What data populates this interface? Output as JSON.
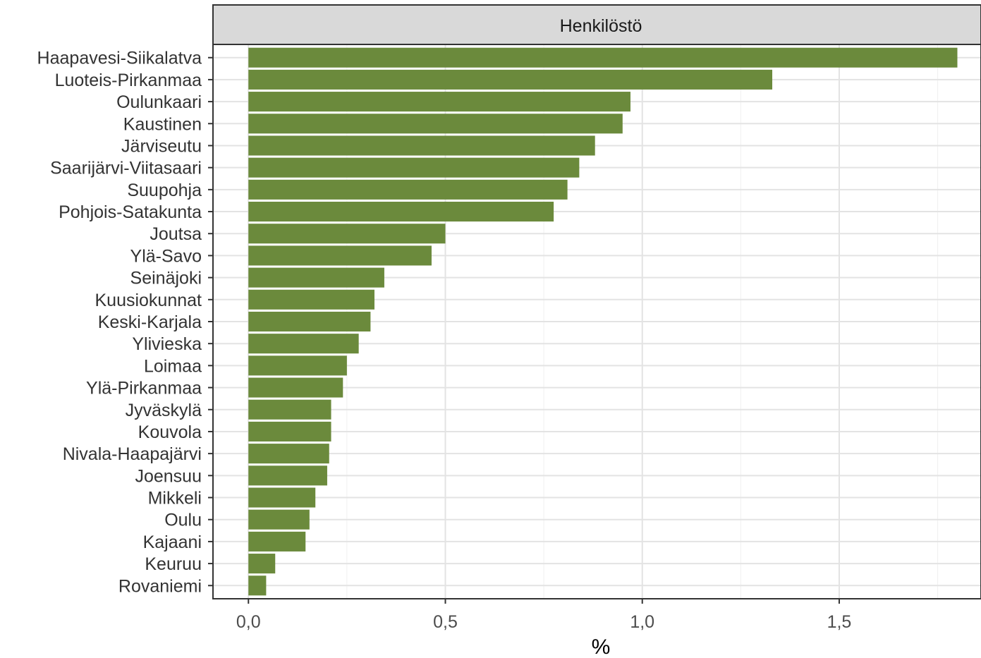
{
  "chart_data": {
    "type": "bar",
    "orientation": "horizontal",
    "facet_title": "Henkilöstö",
    "xlabel": "%",
    "ylabel": "",
    "xlim": [
      -0.09,
      1.86
    ],
    "xticks": [
      0.0,
      0.5,
      1.0,
      1.5
    ],
    "xtick_labels": [
      "0,0",
      "0,5",
      "1,0",
      "1,5"
    ],
    "grid": true,
    "bar_color": "#6B8A3C",
    "categories": [
      "Haapavesi-Siikalatva",
      "Luoteis-Pirkanmaa",
      "Oulunkaari",
      "Kaustinen",
      "Järviseutu",
      "Saarijärvi-Viitasaari",
      "Suupohja",
      "Pohjois-Satakunta",
      "Joutsa",
      "Ylä-Savo",
      "Seinäjoki",
      "Kuusiokunnat",
      "Keski-Karjala",
      "Ylivieska",
      "Loimaa",
      "Ylä-Pirkanmaa",
      "Jyväskylä",
      "Kouvola",
      "Nivala-Haapajärvi",
      "Joensuu",
      "Mikkeli",
      "Oulu",
      "Kajaani",
      "Keuruu",
      "Rovaniemi"
    ],
    "values": [
      1.8,
      1.33,
      0.97,
      0.95,
      0.88,
      0.84,
      0.81,
      0.775,
      0.5,
      0.465,
      0.345,
      0.32,
      0.31,
      0.28,
      0.25,
      0.24,
      0.21,
      0.21,
      0.205,
      0.2,
      0.17,
      0.155,
      0.145,
      0.068,
      0.045
    ]
  }
}
